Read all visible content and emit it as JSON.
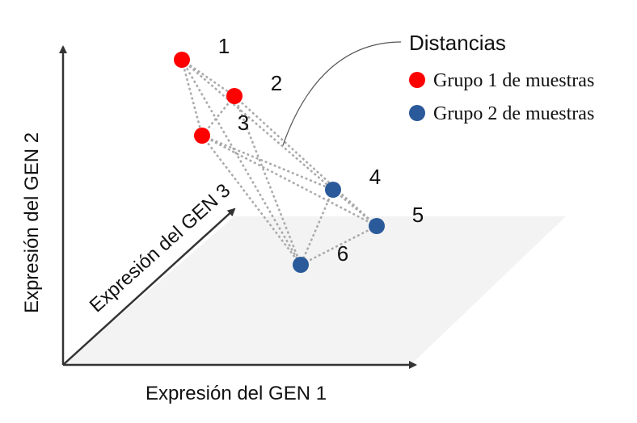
{
  "axes": {
    "x_label": "Expresión del GEN 1",
    "y_label": "Expresión del GEN 2",
    "z_label": "Expresión del GEN 3"
  },
  "points": [
    {
      "id": "1",
      "group": "grupo1"
    },
    {
      "id": "2",
      "group": "grupo1"
    },
    {
      "id": "3",
      "group": "grupo1"
    },
    {
      "id": "4",
      "group": "grupo2"
    },
    {
      "id": "5",
      "group": "grupo2"
    },
    {
      "id": "6",
      "group": "grupo2"
    }
  ],
  "legend": {
    "distances_label": "Distancias",
    "group1_label": "Grupo 1 de muestras",
    "group2_label": "Grupo 2 de muestras"
  },
  "colors": {
    "group1": "#ff0000",
    "group2": "#2a5a9a",
    "axis": "#333333",
    "plane": "#f3f3f3",
    "distance_line": "#aaaaaa"
  }
}
